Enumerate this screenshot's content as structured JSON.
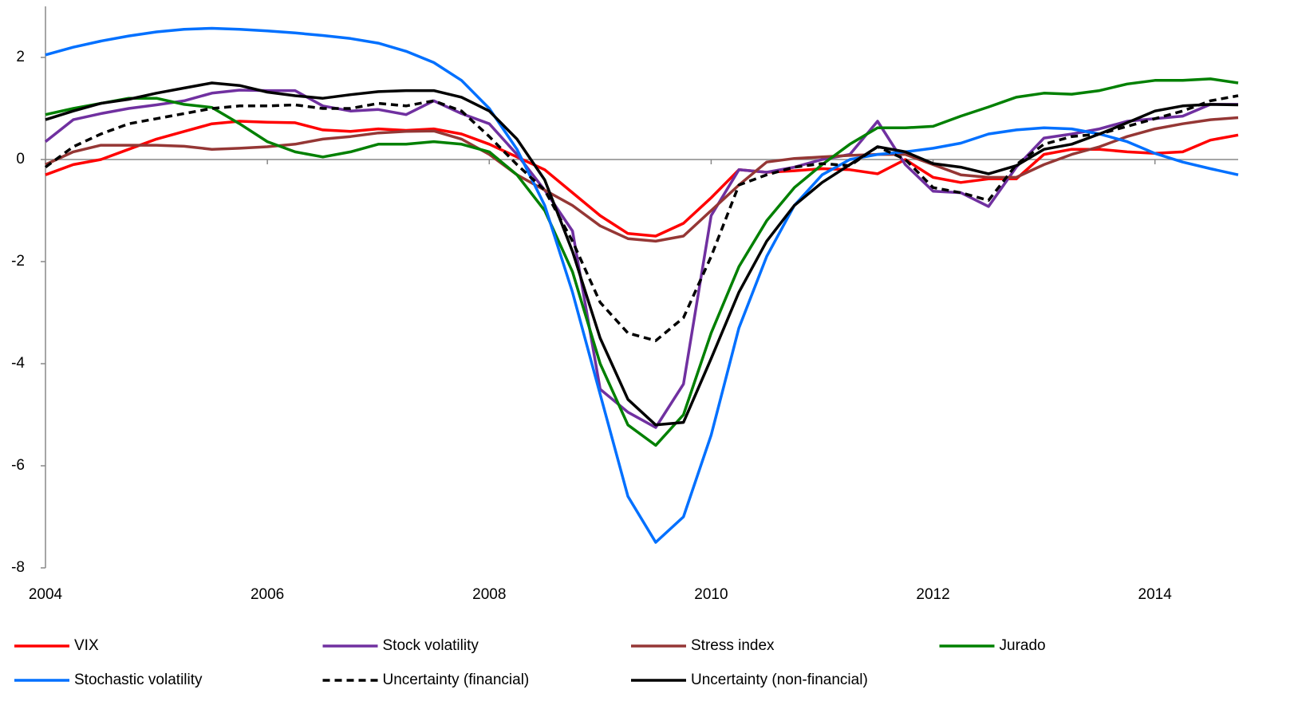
{
  "chart_data": {
    "type": "line",
    "x": [
      2004,
      2004.25,
      2004.5,
      2004.75,
      2005,
      2005.25,
      2005.5,
      2005.75,
      2006,
      2006.25,
      2006.5,
      2006.75,
      2007,
      2007.25,
      2007.5,
      2007.75,
      2008,
      2008.25,
      2008.5,
      2008.75,
      2009,
      2009.25,
      2009.5,
      2009.75,
      2010,
      2010.25,
      2010.5,
      2010.75,
      2011,
      2011.25,
      2011.5,
      2011.75,
      2012,
      2012.25,
      2012.5,
      2012.75,
      2013,
      2013.25,
      2013.5,
      2013.75,
      2014,
      2014.25,
      2014.5,
      2014.75
    ],
    "xlim": [
      2004,
      2014.75
    ],
    "xticks": [
      2004,
      2006,
      2008,
      2010,
      2012,
      2014
    ],
    "ylim": [
      -8,
      3
    ],
    "yticks": [
      -8,
      -6,
      -4,
      -2,
      0,
      2
    ],
    "series": [
      {
        "name": "VIX",
        "color": "#ff0000",
        "values": [
          -0.3,
          -0.1,
          0.0,
          0.2,
          0.4,
          0.55,
          0.7,
          0.75,
          0.73,
          0.72,
          0.58,
          0.55,
          0.6,
          0.57,
          0.6,
          0.5,
          0.3,
          0.05,
          -0.2,
          -0.65,
          -1.1,
          -1.45,
          -1.5,
          -1.25,
          -0.75,
          -0.2,
          -0.25,
          -0.22,
          -0.18,
          -0.2,
          -0.28,
          0.0,
          -0.35,
          -0.45,
          -0.38,
          -0.38,
          0.1,
          0.2,
          0.2,
          0.15,
          0.12,
          0.15,
          0.38,
          0.48
        ]
      },
      {
        "name": "Stock volatility",
        "color": "#7030a0",
        "values": [
          0.35,
          0.78,
          0.9,
          1.0,
          1.07,
          1.15,
          1.3,
          1.36,
          1.35,
          1.35,
          1.05,
          0.95,
          0.98,
          0.88,
          1.15,
          0.9,
          0.7,
          0.1,
          -0.6,
          -1.4,
          -4.5,
          -4.95,
          -5.25,
          -4.4,
          -1.1,
          -0.2,
          -0.25,
          -0.15,
          0.0,
          0.1,
          0.75,
          -0.1,
          -0.62,
          -0.65,
          -0.92,
          -0.15,
          0.42,
          0.5,
          0.6,
          0.75,
          0.8,
          0.85,
          1.08,
          1.08
        ]
      },
      {
        "name": "Stress index",
        "color": "#953735",
        "values": [
          -0.1,
          0.15,
          0.28,
          0.28,
          0.28,
          0.26,
          0.2,
          0.22,
          0.25,
          0.3,
          0.4,
          0.45,
          0.52,
          0.55,
          0.56,
          0.4,
          0.1,
          -0.3,
          -0.6,
          -0.9,
          -1.3,
          -1.55,
          -1.6,
          -1.5,
          -1.0,
          -0.5,
          -0.05,
          0.02,
          0.05,
          0.08,
          0.1,
          0.1,
          -0.1,
          -0.3,
          -0.35,
          -0.35,
          -0.1,
          0.1,
          0.25,
          0.45,
          0.6,
          0.7,
          0.78,
          0.82
        ]
      },
      {
        "name": "Jurado",
        "color": "#008000",
        "values": [
          0.88,
          1.0,
          1.1,
          1.2,
          1.2,
          1.08,
          1.02,
          0.7,
          0.35,
          0.15,
          0.05,
          0.15,
          0.3,
          0.3,
          0.35,
          0.3,
          0.15,
          -0.3,
          -1.0,
          -2.2,
          -4.0,
          -5.2,
          -5.6,
          -5.0,
          -3.4,
          -2.1,
          -1.2,
          -0.55,
          -0.1,
          0.3,
          0.62,
          0.62,
          0.65,
          0.85,
          1.03,
          1.22,
          1.3,
          1.28,
          1.35,
          1.48,
          1.55,
          1.55,
          1.58,
          1.5
        ]
      },
      {
        "name": "Stochastic volatility",
        "color": "#0070ff",
        "values": [
          2.05,
          2.2,
          2.32,
          2.42,
          2.5,
          2.55,
          2.57,
          2.55,
          2.52,
          2.48,
          2.43,
          2.37,
          2.28,
          2.12,
          1.9,
          1.55,
          1.0,
          0.2,
          -0.9,
          -2.6,
          -4.6,
          -6.6,
          -7.5,
          -7.0,
          -5.4,
          -3.3,
          -1.9,
          -0.9,
          -0.3,
          0.0,
          0.1,
          0.15,
          0.22,
          0.32,
          0.5,
          0.58,
          0.62,
          0.6,
          0.5,
          0.35,
          0.12,
          -0.05,
          -0.18,
          -0.3
        ]
      },
      {
        "name": "Uncertainty (financial)",
        "color": "#000000",
        "dashed": true,
        "values": [
          -0.15,
          0.25,
          0.5,
          0.7,
          0.8,
          0.9,
          1.0,
          1.05,
          1.05,
          1.07,
          1.0,
          1.0,
          1.1,
          1.05,
          1.15,
          0.95,
          0.45,
          -0.1,
          -0.6,
          -1.6,
          -2.8,
          -3.4,
          -3.55,
          -3.1,
          -1.9,
          -0.5,
          -0.3,
          -0.15,
          -0.08,
          -0.12,
          0.25,
          0.0,
          -0.55,
          -0.65,
          -0.8,
          -0.1,
          0.3,
          0.45,
          0.5,
          0.65,
          0.8,
          0.95,
          1.15,
          1.25
        ]
      },
      {
        "name": "Uncertainty (non-financial)",
        "color": "#000000",
        "values": [
          0.78,
          0.95,
          1.1,
          1.18,
          1.3,
          1.4,
          1.5,
          1.45,
          1.32,
          1.25,
          1.2,
          1.27,
          1.33,
          1.35,
          1.35,
          1.22,
          0.95,
          0.4,
          -0.4,
          -1.8,
          -3.5,
          -4.7,
          -5.2,
          -5.15,
          -3.9,
          -2.6,
          -1.6,
          -0.9,
          -0.45,
          -0.1,
          0.25,
          0.15,
          -0.08,
          -0.15,
          -0.28,
          -0.12,
          0.2,
          0.3,
          0.5,
          0.72,
          0.95,
          1.05,
          1.08,
          1.07
        ]
      }
    ]
  }
}
